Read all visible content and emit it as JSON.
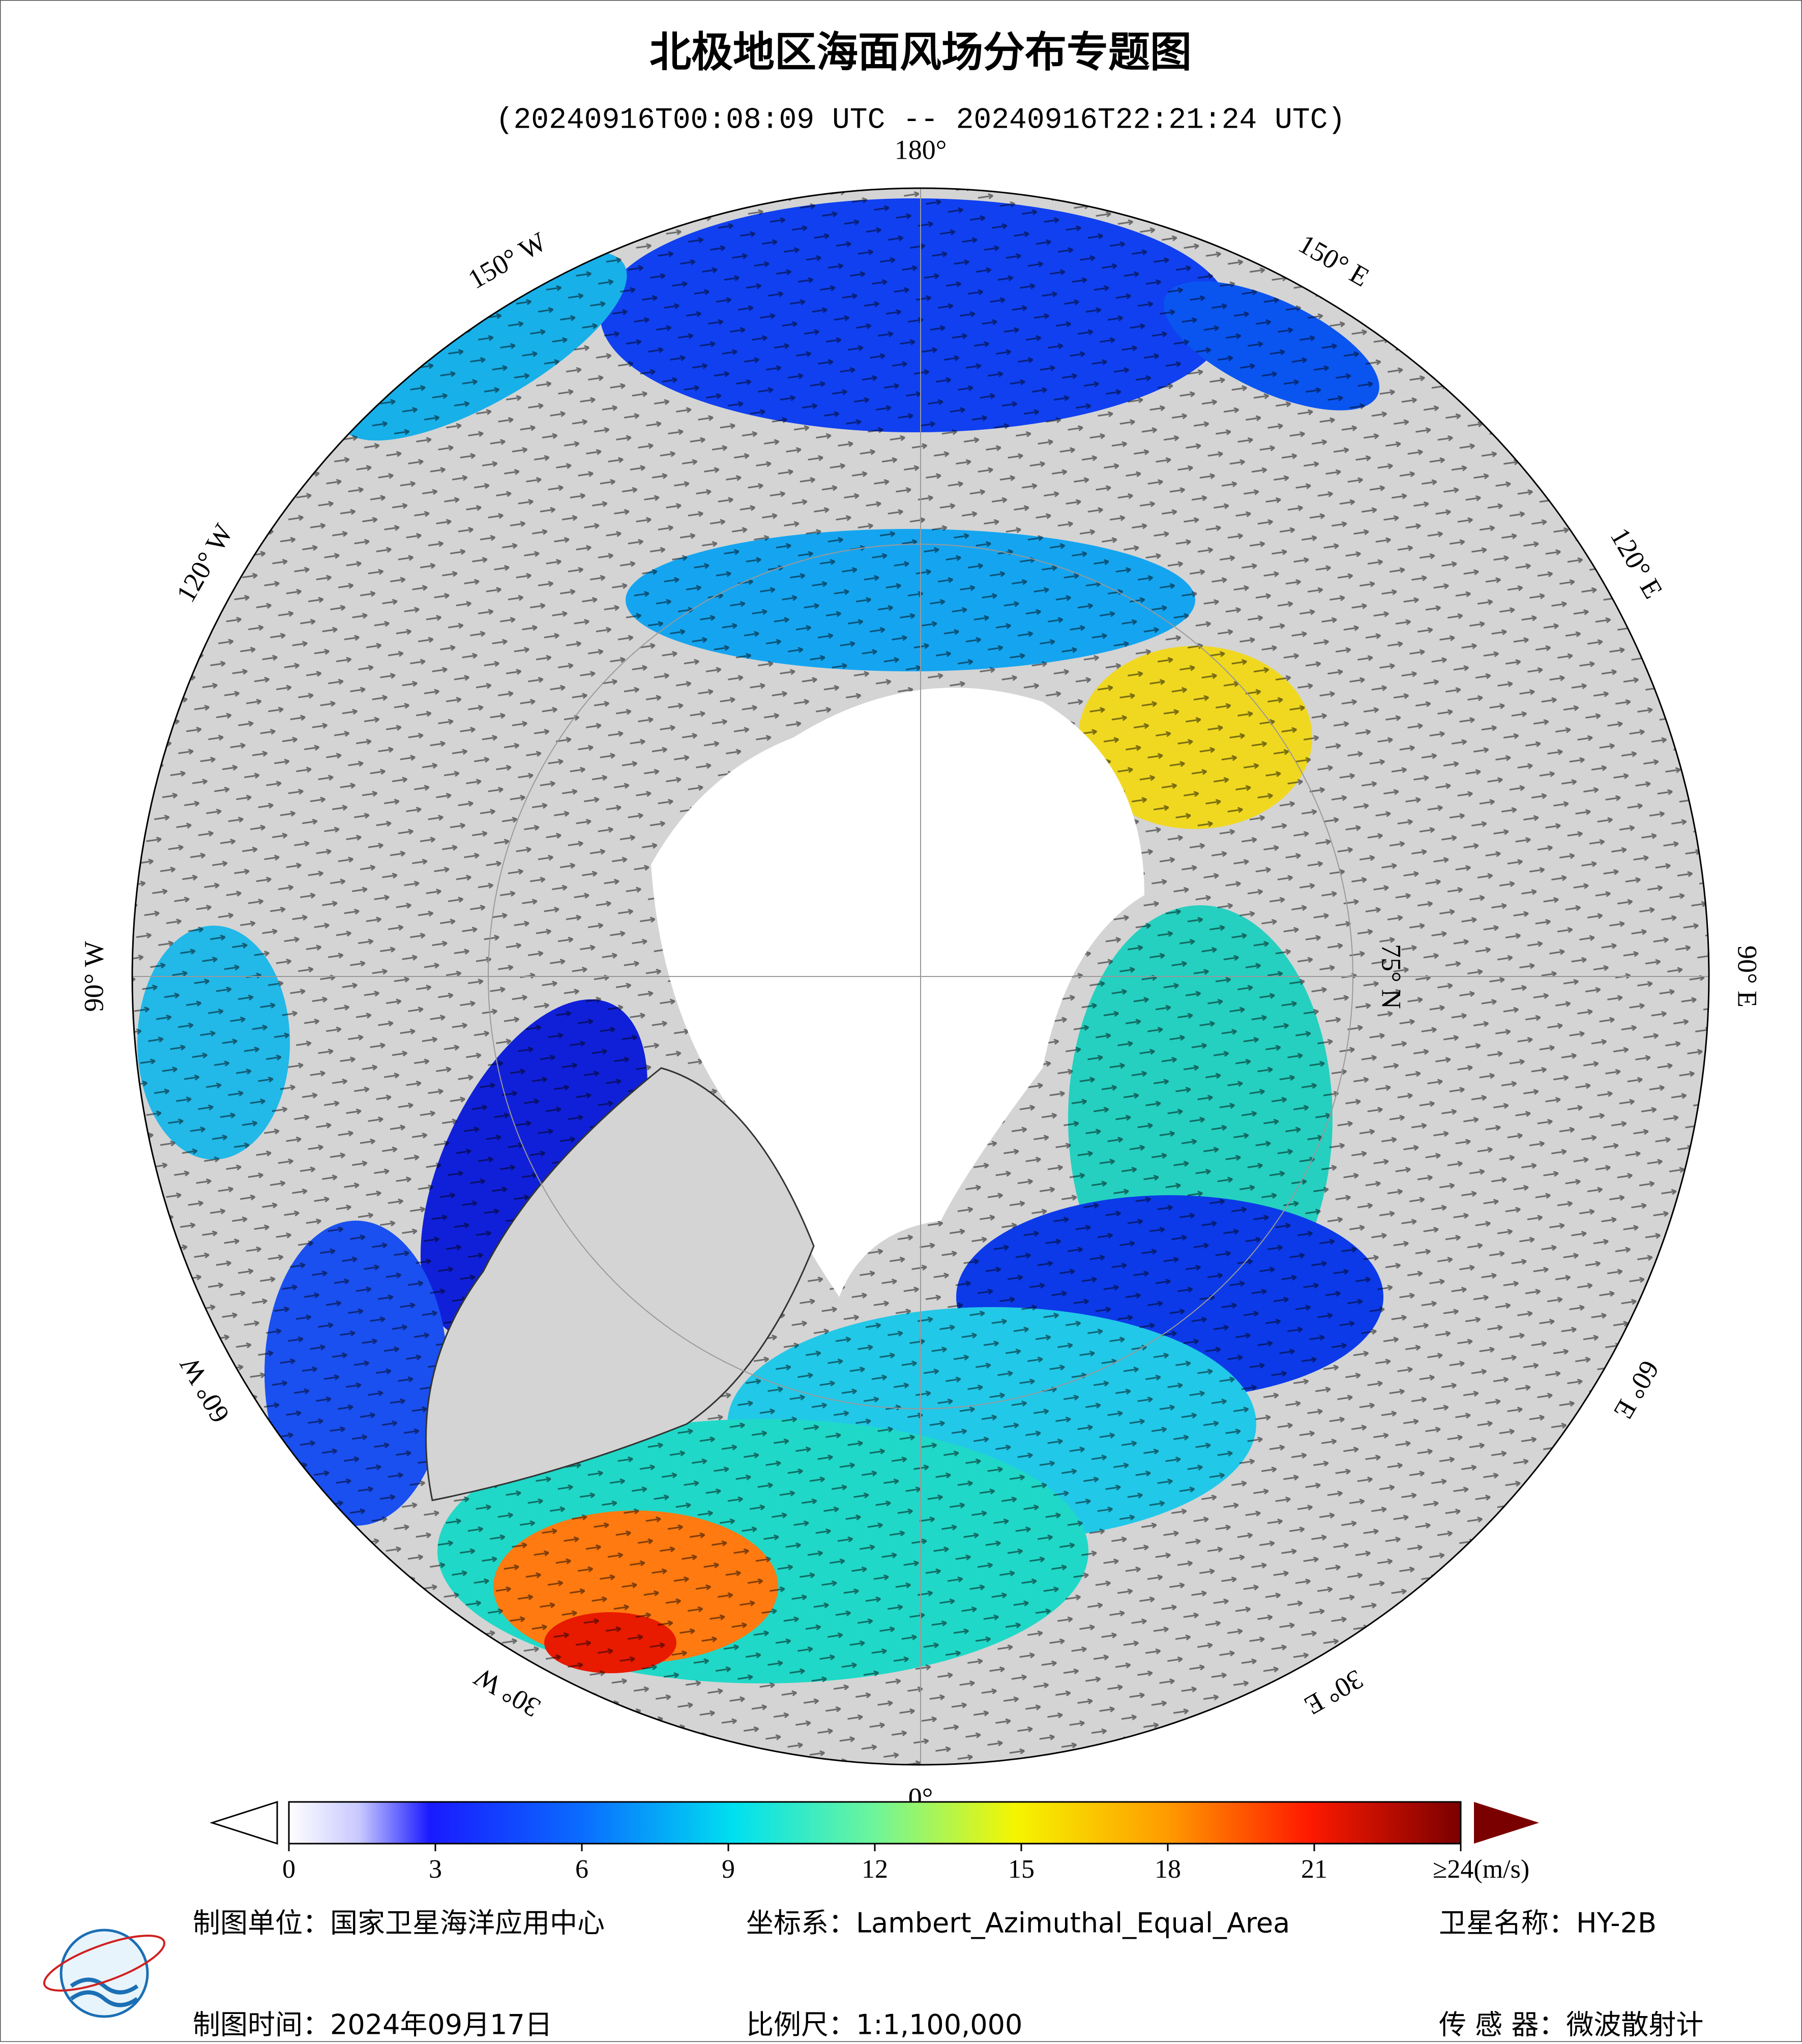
{
  "header": {
    "title": "北极地区海面风场分布专题图",
    "subtitle": "(20240916T00:08:09 UTC -- 20240916T22:21:24 UTC)"
  },
  "map": {
    "longitude_labels": [
      "180°",
      "150° E",
      "120° E",
      "90° E",
      "60° E",
      "30° E",
      "0°",
      "30° W",
      "60° W",
      "90° W",
      "120° W",
      "150° W"
    ],
    "latitude_label": "75° N"
  },
  "colorbar": {
    "lim": [
      0,
      24
    ],
    "ticks": [
      0,
      3,
      6,
      9,
      12,
      15,
      18,
      21,
      {
        "value": 24,
        "label": "≥24(m/s)"
      }
    ]
  },
  "footer": {
    "unit": "制图单位：国家卫星海洋应用中心",
    "projection": "坐标系：Lambert_Azimuthal_Equal_Area",
    "satellite": "卫星名称：HY-2B",
    "date": "制图时间：2024年09月17日",
    "scale": "比例尺：1:1,100,000",
    "sensor": "传 感 器：微波散射计"
  }
}
